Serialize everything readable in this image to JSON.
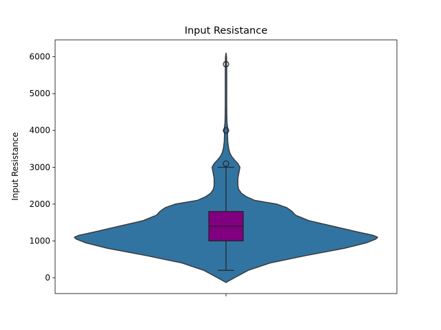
{
  "chart_data": {
    "type": "violin",
    "title": "Input Resistance",
    "xlabel": "",
    "ylabel": "Input Resistance",
    "ylim": [
      -430,
      6460
    ],
    "yticks": [
      0,
      1000,
      2000,
      3000,
      4000,
      5000,
      6000
    ],
    "ytick_labels": [
      "0",
      "1000",
      "2000",
      "3000",
      "4000",
      "5000",
      "6000"
    ],
    "xticks": [
      ""
    ],
    "grid": false,
    "colors": {
      "violin_fill": "#3274a1",
      "violin_edge": "#3a3a3a",
      "box_fill": "#800080",
      "whisker": "#222222"
    },
    "violin_profile": {
      "y": [
        -130,
        0,
        200,
        400,
        600,
        800,
        950,
        1050,
        1100,
        1150,
        1250,
        1400,
        1550,
        1700,
        1800,
        1900,
        2000,
        2100,
        2200,
        2300,
        2400,
        2500,
        2700,
        2900,
        3000,
        3100,
        3200,
        3300,
        3400,
        3500,
        3700,
        3900,
        4000,
        4100,
        4200,
        4400,
        4700,
        5000,
        5300,
        5600,
        5800,
        6000,
        6100
      ],
      "density": [
        0.0,
        0.05,
        0.13,
        0.26,
        0.47,
        0.7,
        0.83,
        0.885,
        0.895,
        0.87,
        0.77,
        0.63,
        0.49,
        0.41,
        0.39,
        0.36,
        0.3,
        0.17,
        0.12,
        0.09,
        0.075,
        0.07,
        0.07,
        0.078,
        0.082,
        0.07,
        0.05,
        0.032,
        0.022,
        0.016,
        0.01,
        0.009,
        0.011,
        0.009,
        0.006,
        0.005,
        0.004,
        0.004,
        0.004,
        0.004,
        0.004,
        0.003,
        0.0
      ]
    },
    "box": {
      "q1": 1000,
      "median": 1400,
      "q3": 1800,
      "whisker_low": 200,
      "whisker_high": 3000
    },
    "outliers": [
      3100,
      4000,
      5800
    ]
  }
}
